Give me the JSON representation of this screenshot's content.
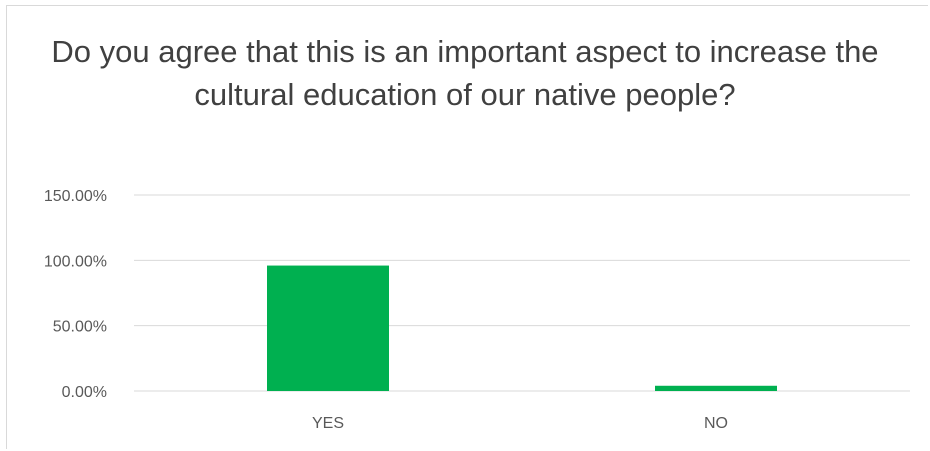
{
  "chart_data": {
    "type": "bar",
    "title": "Do you agree that this is an important aspect to increase the cultural education of our native people?",
    "categories": [
      "YES",
      "NO"
    ],
    "values": [
      96,
      4
    ],
    "ylim": [
      0,
      150
    ],
    "yticks": [
      0,
      50,
      100,
      150
    ],
    "ytick_labels": [
      "0.00%",
      "50.00%",
      "100.00%",
      "150.00%"
    ],
    "xlabel": "",
    "ylabel": "",
    "grid": true,
    "bar_color": "#00b050"
  }
}
